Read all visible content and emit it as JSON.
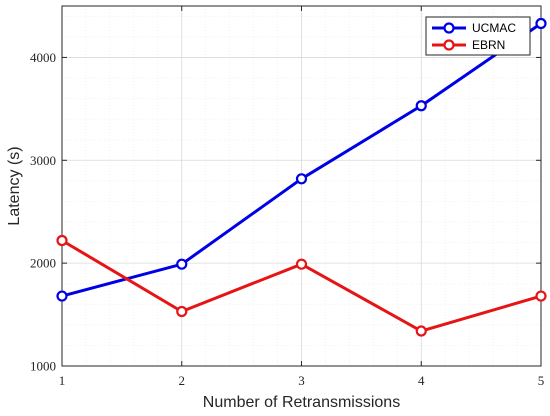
{
  "chart_data": {
    "type": "line",
    "title": "",
    "xlabel": "Number of Retransmissions",
    "ylabel": "Latency (s)",
    "x": [
      1,
      2,
      3,
      4,
      5
    ],
    "xlim": [
      1,
      5
    ],
    "ylim": [
      1000,
      4500
    ],
    "xticks": [
      "1",
      "2",
      "3",
      "4",
      "5"
    ],
    "yticks": [
      "1000",
      "2000",
      "3000",
      "4000"
    ],
    "grid": true,
    "minor_grid": true,
    "legend_position": "top-right",
    "series": [
      {
        "name": "UCMAC",
        "color": "#0000e6",
        "values": [
          1680,
          1990,
          2820,
          3530,
          4330
        ]
      },
      {
        "name": "EBRN",
        "color": "#e61414",
        "values": [
          2220,
          1530,
          1990,
          1340,
          1680
        ]
      }
    ]
  }
}
